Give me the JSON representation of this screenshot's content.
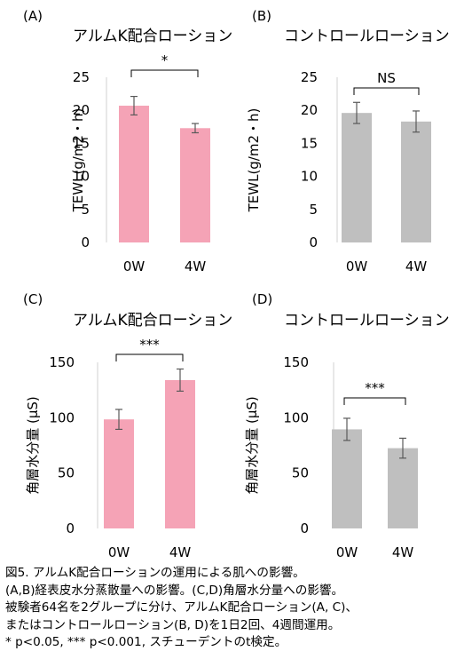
{
  "chart_data": [
    {
      "panel": "(A)",
      "title": "アルムK配合ローション",
      "type": "bar",
      "categories": [
        "0W",
        "4W"
      ],
      "values": [
        20.7,
        17.3
      ],
      "errors": [
        1.4,
        0.7
      ],
      "ylabel": "TEWL(g/m2・h)",
      "ylim": [
        0,
        25
      ],
      "yticks": [
        0,
        5,
        10,
        15,
        20,
        25
      ],
      "significance": "*",
      "color": "#f5a3b6"
    },
    {
      "panel": "(B)",
      "title": "コントロールローション",
      "type": "bar",
      "categories": [
        "0W",
        "4W"
      ],
      "values": [
        19.6,
        18.3
      ],
      "errors": [
        1.6,
        1.6
      ],
      "ylabel": "TEWL(g/m2・h)",
      "ylim": [
        0,
        25
      ],
      "yticks": [
        0,
        5,
        10,
        15,
        20,
        25
      ],
      "significance": "NS",
      "color": "#bfbfbf"
    },
    {
      "panel": "(C)",
      "title": "アルムK配合ローション",
      "type": "bar",
      "categories": [
        "0W",
        "4W"
      ],
      "values": [
        98.5,
        134.0
      ],
      "errors": [
        9.0,
        10.0
      ],
      "ylabel": "角層水分量 (μS)",
      "ylim": [
        0,
        150
      ],
      "yticks": [
        0,
        50,
        100,
        150
      ],
      "significance": "***",
      "color": "#f5a3b6"
    },
    {
      "panel": "(D)",
      "title": "コントロールローション",
      "type": "bar",
      "categories": [
        "0W",
        "4W"
      ],
      "values": [
        89.5,
        72.5
      ],
      "errors": [
        10.0,
        9.0
      ],
      "ylabel": "角層水分量 (μS)",
      "ylim": [
        0,
        150
      ],
      "yticks": [
        0,
        50,
        100,
        150
      ],
      "significance": "***",
      "color": "#bfbfbf"
    }
  ],
  "caption": {
    "lines": [
      "図5. アルムK配合ローションの運用による肌への影響。",
      "(A,B)経表皮水分蒸散量への影響。(C,D)角層水分量への影響。",
      "被験者64名を2グループに分け、アルムK配合ローション(A, C)、",
      "またはコントロールローション(B, D)を1日2回、4週間運用。",
      "* p<0.05, *** p<0.001, スチューデントのt検定。"
    ]
  },
  "colors": {
    "error_bar": "#595959",
    "axis": "#d0d0d0",
    "bracket": "#000000"
  }
}
